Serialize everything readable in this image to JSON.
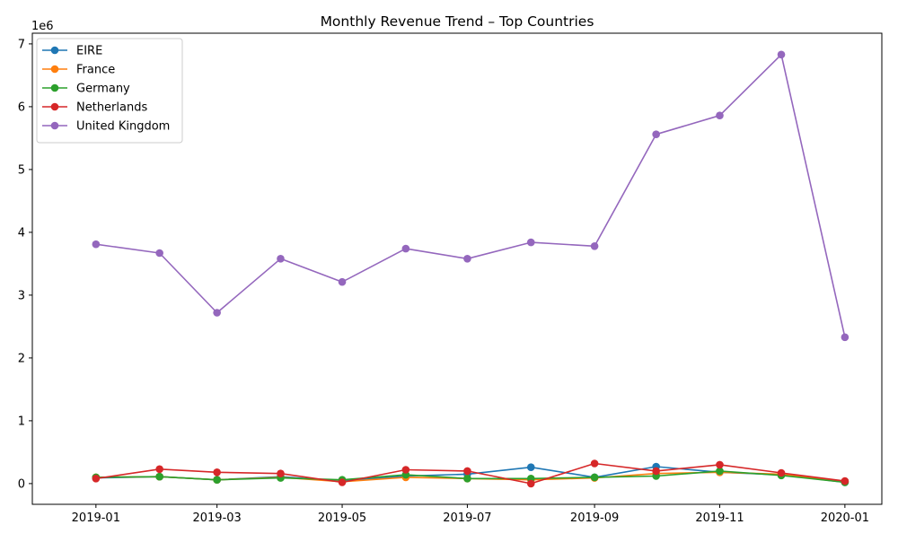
{
  "chart_data": {
    "type": "line",
    "title": "Monthly Revenue Trend – Top Countries",
    "xlabel": "",
    "ylabel": "",
    "y_offset_label": "1e6",
    "x": [
      "2019-01-01",
      "2019-02-01",
      "2019-03-01",
      "2019-04-01",
      "2019-05-01",
      "2019-06-01",
      "2019-07-01",
      "2019-08-01",
      "2019-09-01",
      "2019-10-01",
      "2019-11-01",
      "2019-12-01",
      "2020-01-01"
    ],
    "xlim": [
      "2018-12-01",
      "2020-01-19"
    ],
    "ylim": [
      -330000,
      7170000
    ],
    "x_ticks": [
      {
        "date": "2019-01-01",
        "label": "2019-01"
      },
      {
        "date": "2019-03-01",
        "label": "2019-03"
      },
      {
        "date": "2019-05-01",
        "label": "2019-05"
      },
      {
        "date": "2019-07-01",
        "label": "2019-07"
      },
      {
        "date": "2019-09-01",
        "label": "2019-09"
      },
      {
        "date": "2019-11-01",
        "label": "2019-11"
      },
      {
        "date": "2020-01-01",
        "label": "2020-01"
      }
    ],
    "y_ticks": [
      {
        "value": 0,
        "label": "0"
      },
      {
        "value": 1000000,
        "label": "1"
      },
      {
        "value": 2000000,
        "label": "2"
      },
      {
        "value": 3000000,
        "label": "3"
      },
      {
        "value": 4000000,
        "label": "4"
      },
      {
        "value": 5000000,
        "label": "5"
      },
      {
        "value": 6000000,
        "label": "6"
      },
      {
        "value": 7000000,
        "label": "7"
      }
    ],
    "grid": false,
    "legend_position": "top-left",
    "series": [
      {
        "name": "EIRE",
        "color": "#1f77b4",
        "values": [
          90000,
          110000,
          60000,
          110000,
          40000,
          120000,
          150000,
          260000,
          100000,
          270000,
          180000,
          140000,
          20000
        ]
      },
      {
        "name": "France",
        "color": "#ff7f0e",
        "values": [
          100000,
          110000,
          60000,
          100000,
          30000,
          100000,
          80000,
          60000,
          90000,
          160000,
          180000,
          150000,
          30000
        ]
      },
      {
        "name": "Germany",
        "color": "#2ca02c",
        "values": [
          100000,
          110000,
          60000,
          90000,
          60000,
          140000,
          80000,
          80000,
          100000,
          120000,
          200000,
          130000,
          20000
        ]
      },
      {
        "name": "Netherlands",
        "color": "#d62728",
        "values": [
          80000,
          230000,
          180000,
          160000,
          20000,
          220000,
          200000,
          0,
          320000,
          200000,
          300000,
          170000,
          40000
        ]
      },
      {
        "name": "United Kingdom",
        "color": "#9467bd",
        "values": [
          3810000,
          3670000,
          2720000,
          3580000,
          3210000,
          3740000,
          3580000,
          3840000,
          3780000,
          5560000,
          5860000,
          6830000,
          2330000
        ]
      }
    ]
  }
}
